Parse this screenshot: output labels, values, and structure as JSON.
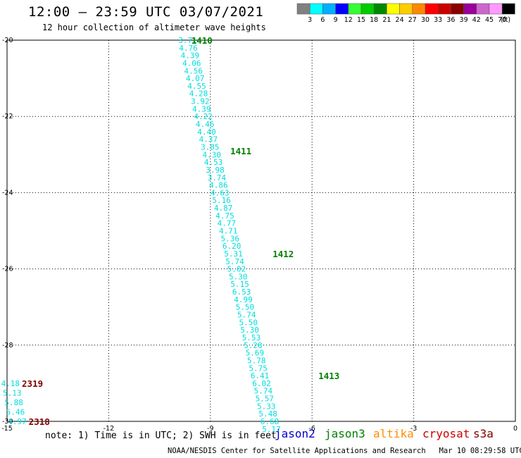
{
  "header": {
    "title": "12:00 – 23:59 UTC 03/07/2021",
    "subtitle": "12 hour collection of altimeter wave heights"
  },
  "footer": {
    "note": "note: 1) Time is in UTC; 2) SWH is in feet",
    "credit": "NOAA/NESDIS Center for Satellite Applications and Research   Mar 10 08:29:58 UTC 2021"
  },
  "satellites": [
    {
      "name": "jason2",
      "color": "#0000cc"
    },
    {
      "name": "jason3",
      "color": "#008000"
    },
    {
      "name": "altika",
      "color": "#ff8c00"
    },
    {
      "name": "cryosat",
      "color": "#cc0000"
    },
    {
      "name": "s3a",
      "color": "#800000"
    }
  ],
  "colors": {
    "track_values": "#00dddd",
    "grid": "#000000"
  },
  "chart_data": {
    "type": "scatter",
    "xlim": [
      -15,
      0
    ],
    "ylim": [
      -30,
      -20
    ],
    "x_ticks": [
      -15,
      -12,
      -9,
      -6,
      -3,
      0
    ],
    "y_ticks": [
      -20,
      -22,
      -24,
      -26,
      -28,
      -30
    ],
    "grid": true,
    "legend": {
      "position": "top-right",
      "unit": "(ft)",
      "swatches": [
        {
          "label": "3",
          "color": "#808080"
        },
        {
          "label": "6",
          "color": "#00ffff"
        },
        {
          "label": "9",
          "color": "#00b0ff"
        },
        {
          "label": "12",
          "color": "#0000ff"
        },
        {
          "label": "15",
          "color": "#33ff33"
        },
        {
          "label": "18",
          "color": "#00cc00"
        },
        {
          "label": "21",
          "color": "#008800"
        },
        {
          "label": "24",
          "color": "#ffff00"
        },
        {
          "label": "27",
          "color": "#ffcc00"
        },
        {
          "label": "30",
          "color": "#ff8800"
        },
        {
          "label": "33",
          "color": "#ff0000"
        },
        {
          "label": "36",
          "color": "#cc0000"
        },
        {
          "label": "39",
          "color": "#880000"
        },
        {
          "label": "42",
          "color": "#990099"
        },
        {
          "label": "45",
          "color": "#cc66cc"
        },
        {
          "label": "70",
          "color": "#ff99ff"
        },
        {
          "label": "",
          "color": "#000000"
        }
      ]
    },
    "tracks": [
      {
        "satellite": "jason3",
        "points": [
          {
            "lon": -9.67,
            "lat": -20.0,
            "swh": "3.71"
          },
          {
            "lon": -9.65,
            "lat": -20.2,
            "swh": "4.76"
          },
          {
            "lon": -9.6,
            "lat": -20.4,
            "swh": "4.39"
          },
          {
            "lon": -9.55,
            "lat": -20.6,
            "swh": "4.06"
          },
          {
            "lon": -9.5,
            "lat": -20.8,
            "swh": "4.56"
          },
          {
            "lon": -9.45,
            "lat": -21.0,
            "swh": "4.07"
          },
          {
            "lon": -9.4,
            "lat": -21.2,
            "swh": "4.55"
          },
          {
            "lon": -9.35,
            "lat": -21.4,
            "swh": "4.28"
          },
          {
            "lon": -9.3,
            "lat": -21.6,
            "swh": "3.92"
          },
          {
            "lon": -9.26,
            "lat": -21.8,
            "swh": "4.39"
          },
          {
            "lon": -9.21,
            "lat": -22.0,
            "swh": "4.22"
          },
          {
            "lon": -9.16,
            "lat": -22.2,
            "swh": "4.46"
          },
          {
            "lon": -9.11,
            "lat": -22.4,
            "swh": "4.40"
          },
          {
            "lon": -9.06,
            "lat": -22.6,
            "swh": "4.37"
          },
          {
            "lon": -9.01,
            "lat": -22.8,
            "swh": "3.85"
          },
          {
            "lon": -8.96,
            "lat": -23.0,
            "swh": "4.30"
          },
          {
            "lon": -8.91,
            "lat": -23.2,
            "swh": "4.53"
          },
          {
            "lon": -8.86,
            "lat": -23.4,
            "swh": "3.98"
          },
          {
            "lon": -8.81,
            "lat": -23.6,
            "swh": "3.74"
          },
          {
            "lon": -8.76,
            "lat": -23.8,
            "swh": "4.86"
          },
          {
            "lon": -8.72,
            "lat": -24.0,
            "swh": "4.63"
          },
          {
            "lon": -8.67,
            "lat": -24.2,
            "swh": "5.16"
          },
          {
            "lon": -8.62,
            "lat": -24.4,
            "swh": "4.87"
          },
          {
            "lon": -8.57,
            "lat": -24.6,
            "swh": "4.75"
          },
          {
            "lon": -8.52,
            "lat": -24.8,
            "swh": "4.77"
          },
          {
            "lon": -8.47,
            "lat": -25.0,
            "swh": "4.71"
          },
          {
            "lon": -8.42,
            "lat": -25.2,
            "swh": "5.36"
          },
          {
            "lon": -8.37,
            "lat": -25.4,
            "swh": "6.20"
          },
          {
            "lon": -8.32,
            "lat": -25.6,
            "swh": "5.31"
          },
          {
            "lon": -8.28,
            "lat": -25.8,
            "swh": "5.74"
          },
          {
            "lon": -8.23,
            "lat": -26.0,
            "swh": "5.02"
          },
          {
            "lon": -8.18,
            "lat": -26.2,
            "swh": "5.30"
          },
          {
            "lon": -8.13,
            "lat": -26.4,
            "swh": "5.15"
          },
          {
            "lon": -8.08,
            "lat": -26.6,
            "swh": "6.53"
          },
          {
            "lon": -8.03,
            "lat": -26.8,
            "swh": "4.99"
          },
          {
            "lon": -7.98,
            "lat": -27.0,
            "swh": "5.50"
          },
          {
            "lon": -7.93,
            "lat": -27.2,
            "swh": "5.74"
          },
          {
            "lon": -7.88,
            "lat": -27.4,
            "swh": "5.50"
          },
          {
            "lon": -7.84,
            "lat": -27.6,
            "swh": "5.30"
          },
          {
            "lon": -7.79,
            "lat": -27.8,
            "swh": "5.53"
          },
          {
            "lon": -7.74,
            "lat": -28.0,
            "swh": "5.28"
          },
          {
            "lon": -7.69,
            "lat": -28.2,
            "swh": "5.69"
          },
          {
            "lon": -7.64,
            "lat": -28.4,
            "swh": "5.78"
          },
          {
            "lon": -7.59,
            "lat": -28.6,
            "swh": "5.75"
          },
          {
            "lon": -7.54,
            "lat": -28.8,
            "swh": "6.41"
          },
          {
            "lon": -7.49,
            "lat": -29.0,
            "swh": "6.02"
          },
          {
            "lon": -7.44,
            "lat": -29.2,
            "swh": "5.74"
          },
          {
            "lon": -7.4,
            "lat": -29.4,
            "swh": "5.57"
          },
          {
            "lon": -7.35,
            "lat": -29.6,
            "swh": "5.33"
          },
          {
            "lon": -7.3,
            "lat": -29.8,
            "swh": "5.48"
          },
          {
            "lon": -7.25,
            "lat": -30.0,
            "swh": "6.68"
          },
          {
            "lon": -7.2,
            "lat": -30.2,
            "swh": "5.17"
          }
        ],
        "time_labels": [
          {
            "text": "1410",
            "lon": -9.25,
            "lat": -20.0
          },
          {
            "text": "1411",
            "lon": -8.1,
            "lat": -22.9
          },
          {
            "text": "1412",
            "lon": -6.85,
            "lat": -25.6
          },
          {
            "text": "1413",
            "lon": -5.5,
            "lat": -28.8
          }
        ]
      },
      {
        "satellite": "s3a",
        "points": [
          {
            "lon": -14.9,
            "lat": -29.0,
            "swh": "4.18"
          },
          {
            "lon": -14.85,
            "lat": -29.25,
            "swh": "5.13"
          },
          {
            "lon": -14.8,
            "lat": -29.5,
            "swh": "5.88"
          },
          {
            "lon": -14.75,
            "lat": -29.75,
            "swh": "5.46"
          },
          {
            "lon": -14.7,
            "lat": -30.0,
            "swh": "4.97"
          }
        ],
        "time_labels": [
          {
            "text": "2319",
            "lon": -14.25,
            "lat": -29.0
          },
          {
            "text": "2318",
            "lon": -14.05,
            "lat": -30.0
          }
        ]
      }
    ]
  }
}
